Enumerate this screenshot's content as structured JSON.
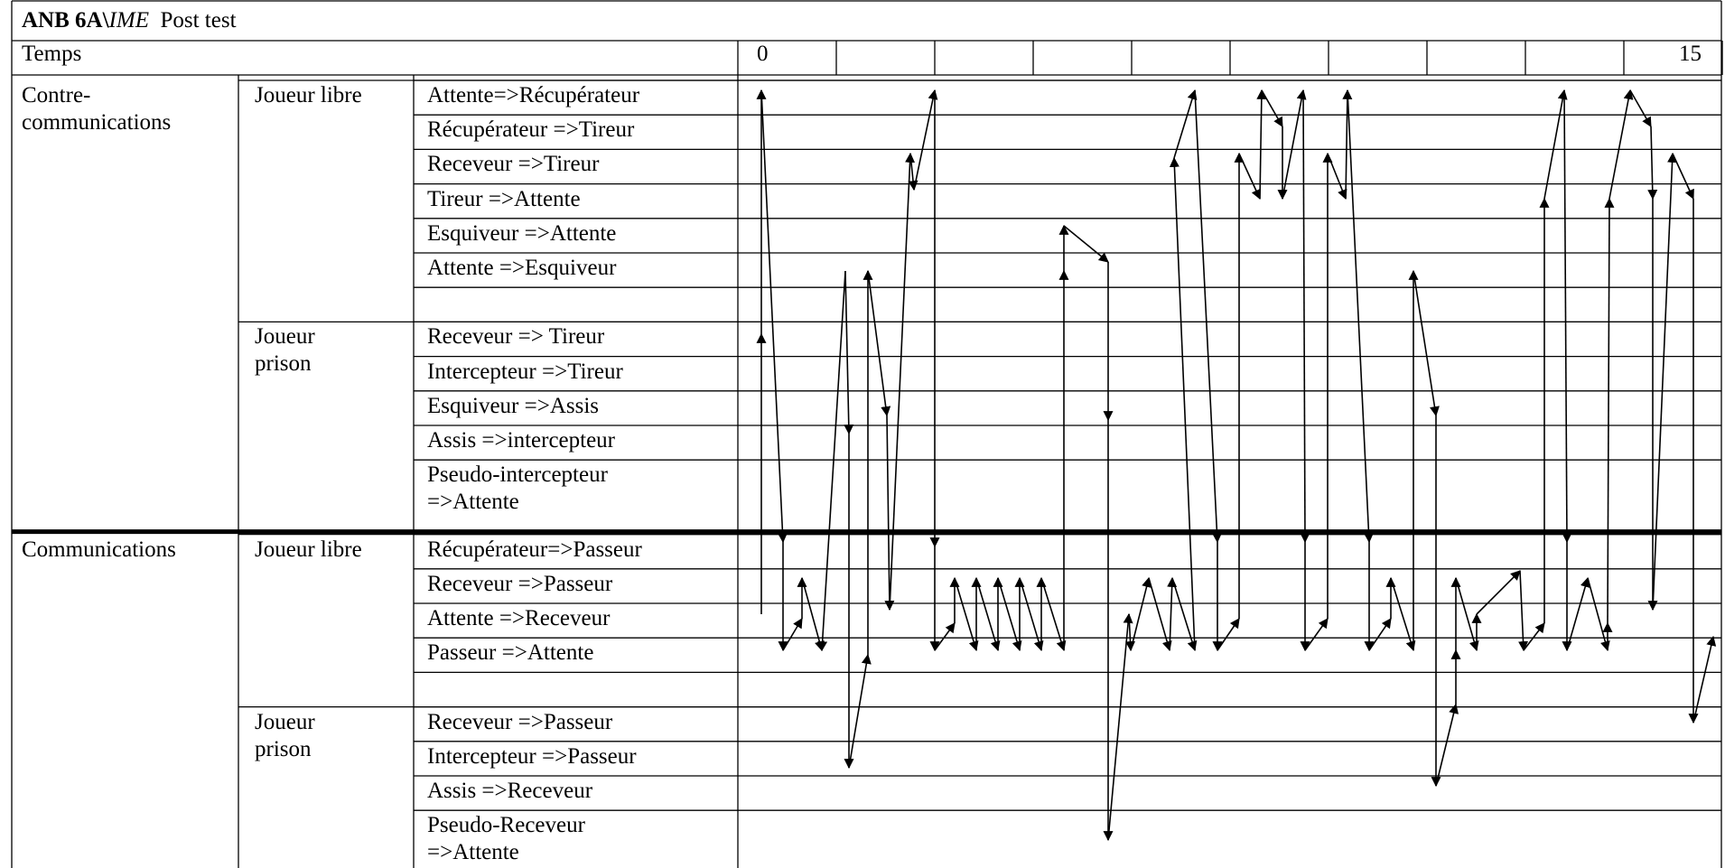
{
  "title": {
    "code": "ANB 6A\\",
    "group": "IME",
    "phase": "Post test"
  },
  "time": {
    "label": "Temps",
    "start": "0",
    "end": "15"
  },
  "sections": [
    {
      "name": "Contre-\ncommunications",
      "groups": [
        {
          "name": "Joueur libre",
          "rows": [
            "Attente=>Récupérateur",
            "Récupérateur =>Tireur",
            "Receveur =>Tireur",
            "Tireur =>Attente",
            "Esquiveur =>Attente",
            "Attente =>Esquiveur"
          ]
        },
        {
          "name": "Joueur\nprison",
          "rows": [
            "Receveur => Tireur",
            "Intercepteur =>Tireur",
            "Esquiveur =>Assis",
            "Assis =>intercepteur",
            "Pseudo-intercepteur\n=>Attente"
          ]
        }
      ]
    },
    {
      "name": "Communications",
      "groups": [
        {
          "name": "Joueur libre",
          "rows": [
            "Récupérateur=>Passeur",
            "Receveur =>Passeur",
            "Attente =>Receveur",
            "Passeur =>Attente"
          ]
        },
        {
          "name": "Joueur\nprison",
          "rows": [
            "Receveur =>Passeur",
            "Intercepteur =>Passeur",
            "Assis =>Receveur",
            "Pseudo-Receveur\n=>Attente"
          ]
        }
      ]
    }
  ]
}
